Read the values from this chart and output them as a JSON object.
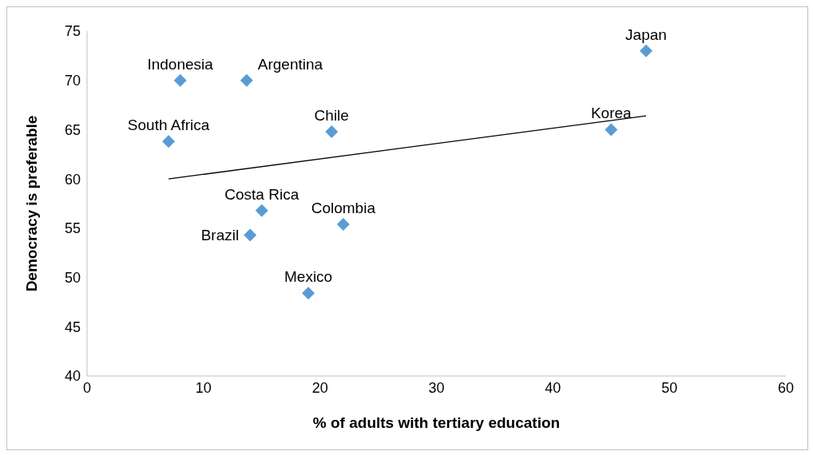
{
  "chart_data": {
    "type": "scatter",
    "xlabel": "% of adults with tertiary education",
    "ylabel": "Democracy is preferable",
    "xlim": [
      0,
      60
    ],
    "xticks": [
      0,
      10,
      20,
      30,
      40,
      50,
      60
    ],
    "ylim": [
      40,
      75
    ],
    "yticks": [
      40,
      45,
      50,
      55,
      60,
      65,
      70,
      75
    ],
    "grid": false,
    "legend": false,
    "marker": "diamond",
    "series": [
      {
        "color": "#5b9bd5",
        "x": [
          48,
          8,
          13.7,
          7,
          21,
          45,
          15,
          22,
          14,
          19
        ],
        "values": [
          73,
          70,
          70,
          63.8,
          64.8,
          65,
          56.8,
          55.4,
          54.3,
          48.4
        ]
      },
      {
        "type": "line",
        "color": "#000000",
        "x": [
          7,
          48
        ],
        "values": [
          60,
          66.4
        ],
        "marker": "none"
      }
    ],
    "annotations": [
      {
        "text": "Japan",
        "x": 48,
        "y": 73
      },
      {
        "text": "Indonesia",
        "x": 8,
        "y": 70
      },
      {
        "text": "Argentina",
        "x": 13.7,
        "y": 70
      },
      {
        "text": "South Africa",
        "x": 7,
        "y": 63.8
      },
      {
        "text": "Chile",
        "x": 21,
        "y": 64.8
      },
      {
        "text": "Korea",
        "x": 45,
        "y": 65
      },
      {
        "text": "Costa Rica",
        "x": 15,
        "y": 56.8
      },
      {
        "text": "Colombia",
        "x": 22,
        "y": 55.4
      },
      {
        "text": "Brazil",
        "x": 14,
        "y": 54.3
      },
      {
        "text": "Mexico",
        "x": 19,
        "y": 48.4
      }
    ]
  }
}
